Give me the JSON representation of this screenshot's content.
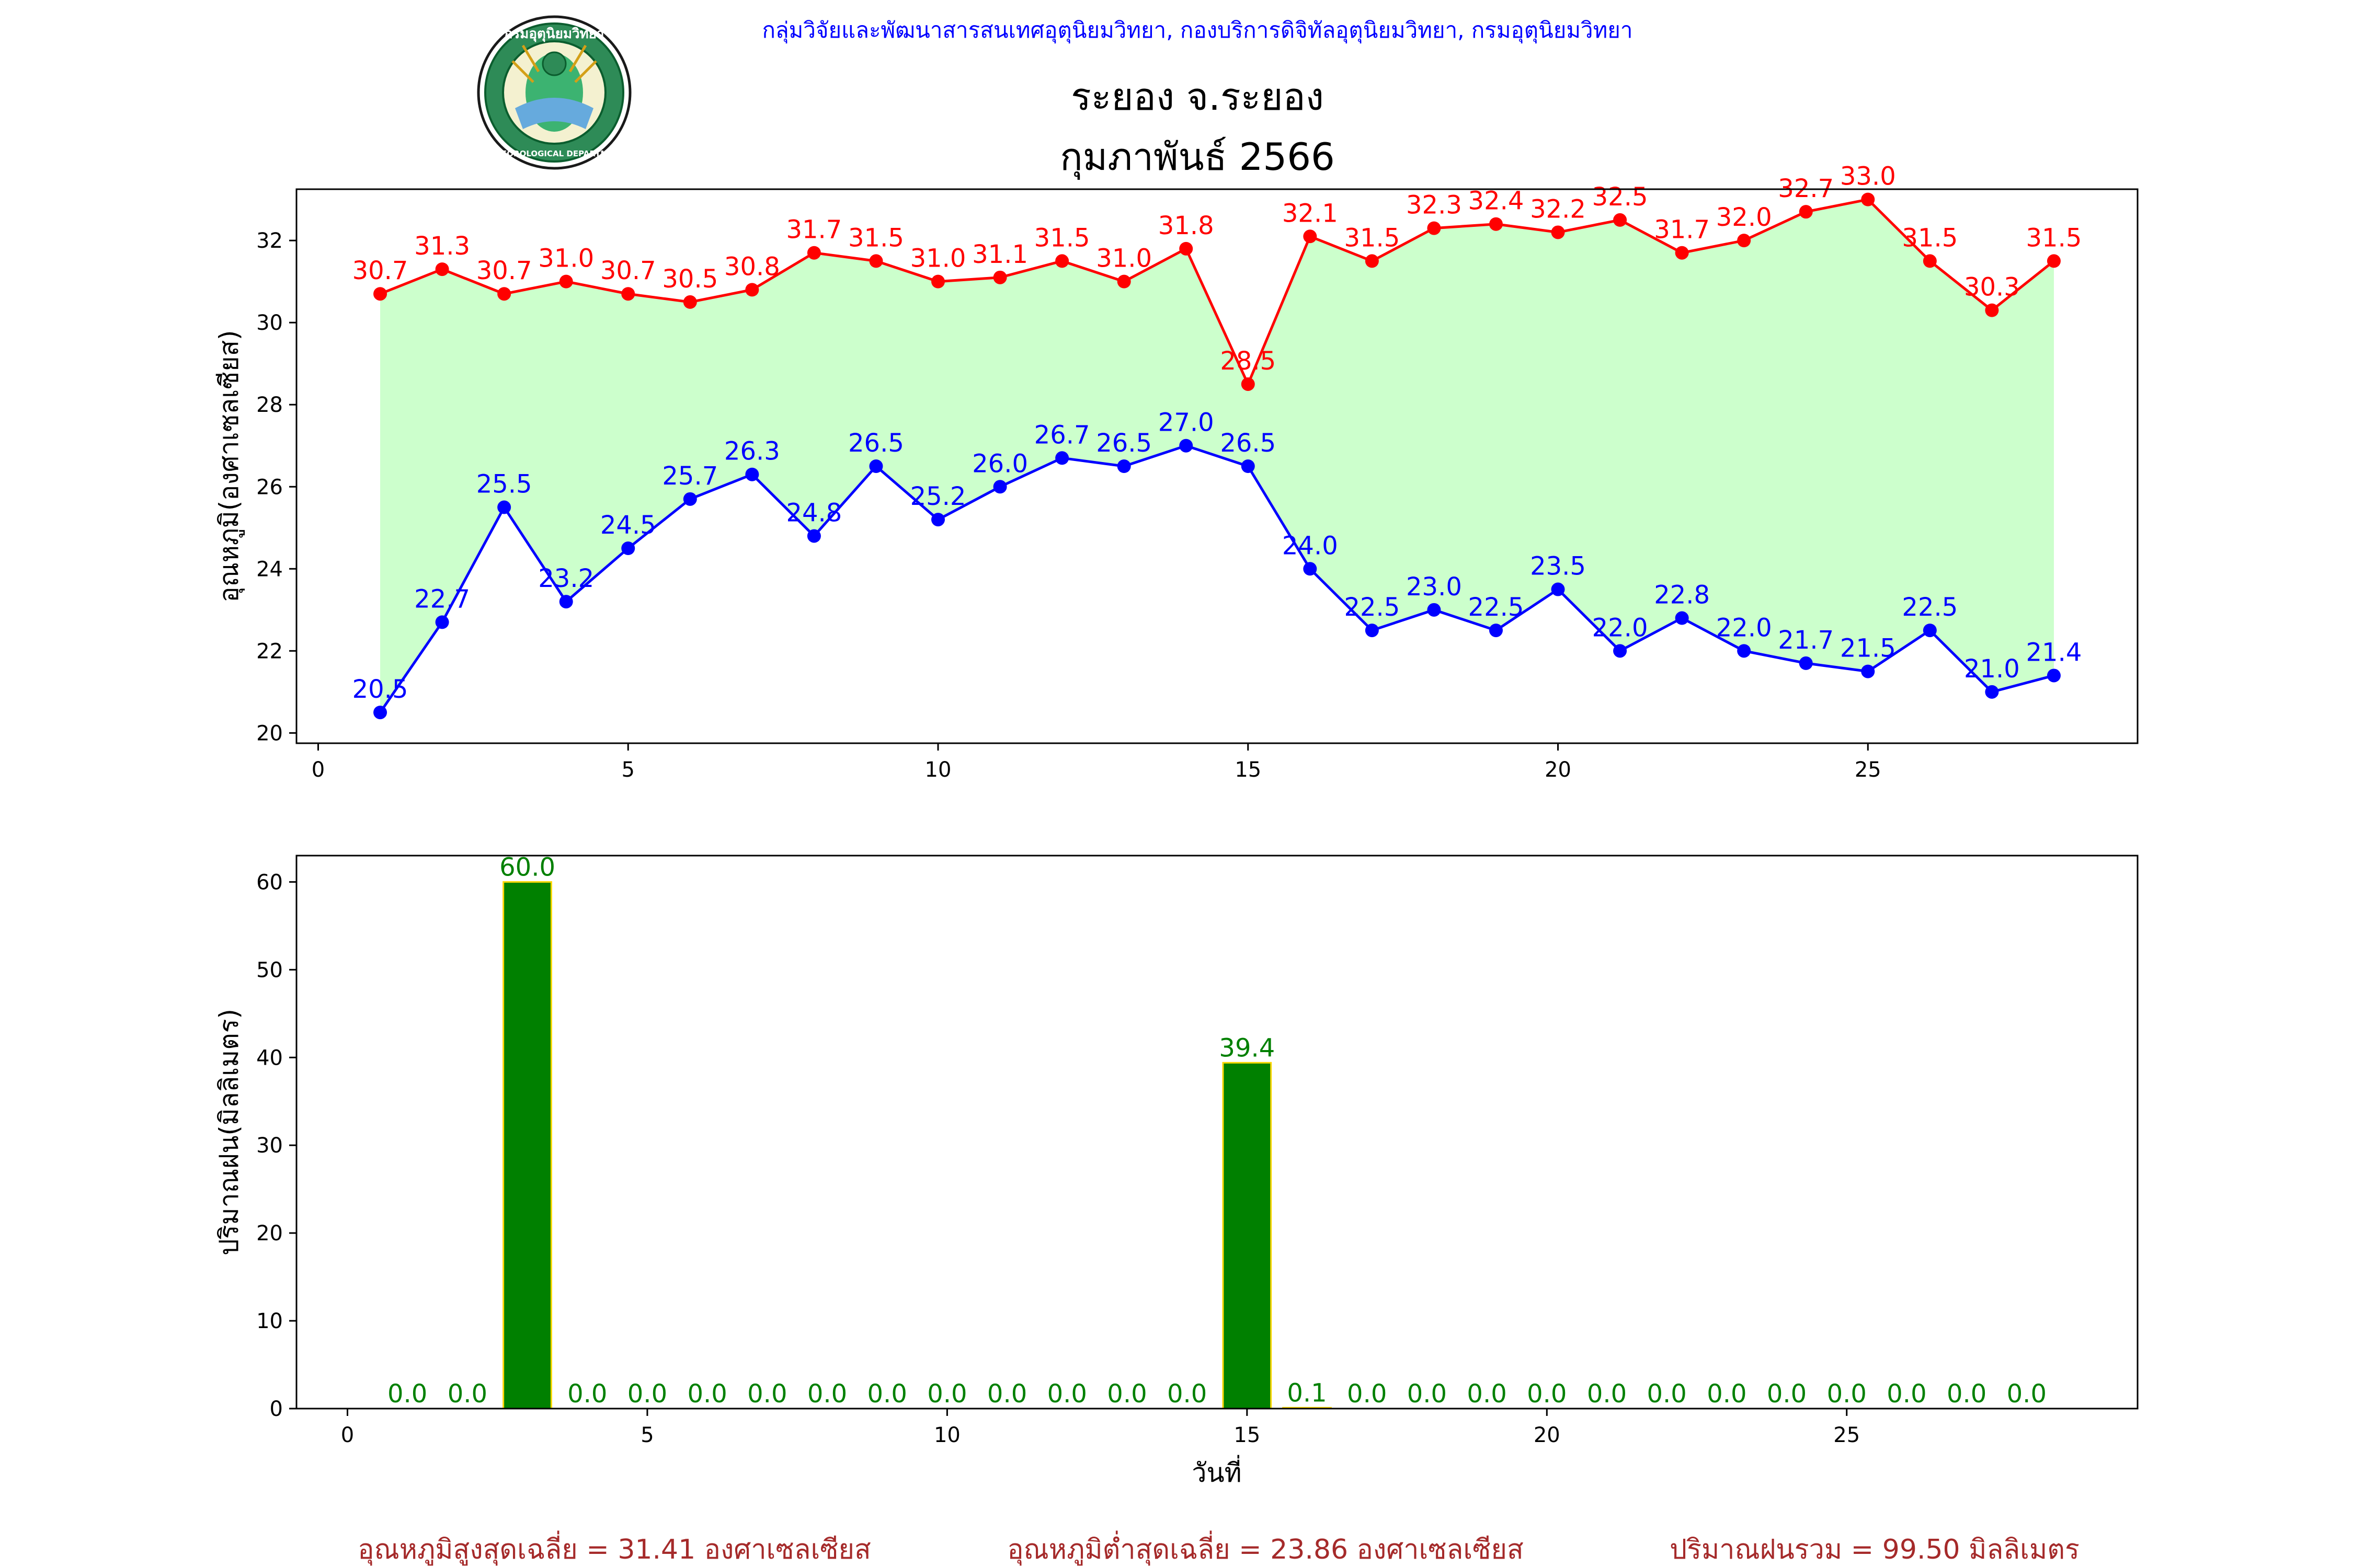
{
  "header": {
    "org_line": "กลุ่มวิจัยและพัฒนาสารสนเทศอุตุนิยมวิทยา, กองบริการดิจิทัลอุตุนิยมวิทยา, กรมอุตุนิยมวิทยา",
    "station": "ระยอง จ.ระยอง",
    "period": "กุมภาพันธ์ 2566",
    "logo_top_text": "กรมอุตุนิยมวิทยา",
    "logo_bottom_text": "METEOROLOGICAL DEPARTMENT"
  },
  "colors": {
    "max_series": "#ff0000",
    "min_series": "#0000ff",
    "fill_between": "#ccffcc",
    "rain_bar": "#008000",
    "rain_bar_edge": "#ffd700",
    "rain_label": "#008000",
    "org_line": "#0000ff",
    "summary": "#a52a2a"
  },
  "chart_data": [
    {
      "type": "line",
      "ylabel": "อุณหภูมิ(องศาเซลเซียส)",
      "xlim": [
        -0.35,
        29.35
      ],
      "ylim": [
        19.75,
        33.25
      ],
      "x_ticks": [
        0,
        5,
        10,
        15,
        20,
        25
      ],
      "y_ticks": [
        20,
        22,
        24,
        26,
        28,
        30,
        32
      ],
      "x": [
        1,
        2,
        3,
        4,
        5,
        6,
        7,
        8,
        9,
        10,
        11,
        12,
        13,
        14,
        15,
        16,
        17,
        18,
        19,
        20,
        21,
        22,
        23,
        24,
        25,
        26,
        27,
        28
      ],
      "series": [
        {
          "key": "max",
          "values": [
            30.7,
            31.3,
            30.7,
            31.0,
            30.7,
            30.5,
            30.8,
            31.7,
            31.5,
            31.0,
            31.1,
            31.5,
            31.0,
            31.8,
            28.5,
            32.1,
            31.5,
            32.3,
            32.4,
            32.2,
            32.5,
            31.7,
            32.0,
            32.7,
            33.0,
            31.5,
            30.3,
            31.5
          ]
        },
        {
          "key": "min",
          "values": [
            20.5,
            22.7,
            25.5,
            23.2,
            24.5,
            25.7,
            26.3,
            24.8,
            26.5,
            25.2,
            26.0,
            26.7,
            26.5,
            27.0,
            26.5,
            24.0,
            22.5,
            23.0,
            22.5,
            23.5,
            22.0,
            22.8,
            22.0,
            21.7,
            21.5,
            22.5,
            21.0,
            21.4
          ]
        }
      ],
      "grid": false
    },
    {
      "type": "bar",
      "ylabel": "ปริมาณฝน(มิลลิเมตร)",
      "xlabel": "วันที่",
      "xlim": [
        -0.85,
        29.85
      ],
      "ylim": [
        0,
        63
      ],
      "x_ticks": [
        0,
        5,
        10,
        15,
        20,
        25
      ],
      "y_ticks": [
        0,
        10,
        20,
        30,
        40,
        50,
        60
      ],
      "x": [
        1,
        2,
        3,
        4,
        5,
        6,
        7,
        8,
        9,
        10,
        11,
        12,
        13,
        14,
        15,
        16,
        17,
        18,
        19,
        20,
        21,
        22,
        23,
        24,
        25,
        26,
        27,
        28
      ],
      "values": [
        0.0,
        0.0,
        60.0,
        0.0,
        0.0,
        0.0,
        0.0,
        0.0,
        0.0,
        0.0,
        0.0,
        0.0,
        0.0,
        0.0,
        39.4,
        0.1,
        0.0,
        0.0,
        0.0,
        0.0,
        0.0,
        0.0,
        0.0,
        0.0,
        0.0,
        0.0,
        0.0,
        0.0
      ],
      "grid": false
    }
  ],
  "summary": {
    "avg_max": "อุณหภูมิสูงสุดเฉลี่ย = 31.41 องศาเซลเซียส",
    "avg_min": "อุณหภูมิต่ำสุดเฉลี่ย = 23.86 องศาเซลเซียส",
    "total_rain": "ปริมาณฝนรวม = 99.50 มิลลิเมตร"
  }
}
